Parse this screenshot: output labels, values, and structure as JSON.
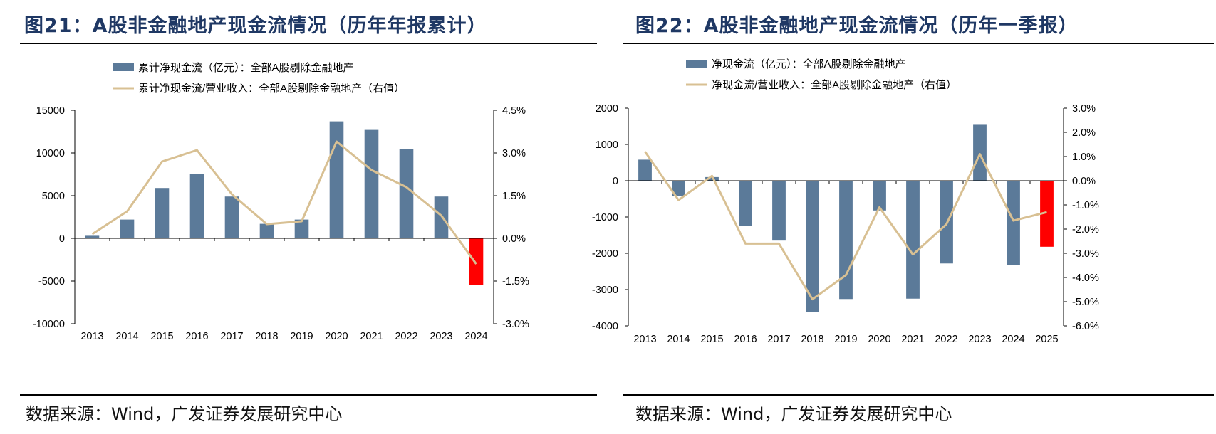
{
  "colors": {
    "bar": "#5b7a99",
    "bar_negative_last": "#ff0000",
    "line": "#d8c093",
    "title": "#1f3864"
  },
  "panels": [
    {
      "title": "图21：A股非金融地产现金流情况（历年年报累计）",
      "source": "数据来源：Wind，广发证券发展研究中心"
    },
    {
      "title": "图22：A股非金融地产现金流情况（历年一季报）",
      "source": "数据来源：Wind，广发证券发展研究中心"
    }
  ],
  "chart_data": [
    {
      "type": "bar",
      "categories": [
        "2013",
        "2014",
        "2015",
        "2016",
        "2017",
        "2018",
        "2019",
        "2020",
        "2021",
        "2022",
        "2023",
        "2024"
      ],
      "series": [
        {
          "name": "累计净现金流（亿元）：全部A股剔除金融地产",
          "kind": "bar",
          "axis": "left",
          "values": [
            300,
            2200,
            5900,
            7500,
            4900,
            1700,
            2200,
            13700,
            12700,
            10500,
            4900,
            -5500
          ]
        },
        {
          "name": "累计净现金流/营业收入：全部A股剔除金融地产（右值）",
          "kind": "line",
          "axis": "right",
          "values": [
            0.15,
            0.95,
            2.7,
            3.1,
            1.55,
            0.5,
            0.6,
            3.4,
            2.4,
            1.8,
            0.8,
            -0.9
          ]
        }
      ],
      "left_axis": {
        "range": [
          -10000,
          15000
        ],
        "ticks": [
          15000,
          10000,
          5000,
          0,
          -5000,
          -10000
        ],
        "tick_labels": [
          "15000",
          "10000",
          "5000",
          "0",
          "-5000",
          "-10000"
        ]
      },
      "right_axis": {
        "range": [
          -3.0,
          4.5
        ],
        "ticks": [
          4.5,
          3.0,
          1.5,
          0.0,
          -1.5,
          -3.0
        ],
        "tick_labels": [
          "4.5%",
          "3.0%",
          "1.5%",
          "0.0%",
          "-1.5%",
          "-3.0%"
        ]
      },
      "legend": "top",
      "grid": false
    },
    {
      "type": "bar",
      "categories": [
        "2013",
        "2014",
        "2015",
        "2016",
        "2017",
        "2018",
        "2019",
        "2020",
        "2021",
        "2022",
        "2023",
        "2024",
        "2025"
      ],
      "series": [
        {
          "name": "净现金流（亿元）：全部A股剔除金融地产",
          "kind": "bar",
          "axis": "left",
          "values": [
            580,
            -420,
            100,
            -1250,
            -1650,
            -3620,
            -3260,
            -820,
            -3250,
            -2280,
            1560,
            -2320,
            -1820
          ]
        },
        {
          "name": "净现金流/营业收入：全部A股剔除金融地产（右值）",
          "kind": "line",
          "axis": "right",
          "values": [
            1.2,
            -0.8,
            0.2,
            -2.6,
            -2.6,
            -4.9,
            -3.9,
            -1.1,
            -3.05,
            -1.8,
            1.1,
            -1.65,
            -1.3
          ]
        }
      ],
      "left_axis": {
        "range": [
          -4000,
          2000
        ],
        "ticks": [
          2000,
          1000,
          0,
          -1000,
          -2000,
          -3000,
          -4000
        ],
        "tick_labels": [
          "2000",
          "1000",
          "0",
          "-1000",
          "-2000",
          "-3000",
          "-4000"
        ]
      },
      "right_axis": {
        "range": [
          -6.0,
          3.0
        ],
        "ticks": [
          3.0,
          2.0,
          1.0,
          0.0,
          -1.0,
          -2.0,
          -3.0,
          -4.0,
          -5.0,
          -6.0
        ],
        "tick_labels": [
          "3.0%",
          "2.0%",
          "1.0%",
          "0.0%",
          "-1.0%",
          "-2.0%",
          "-3.0%",
          "-4.0%",
          "-5.0%",
          "-6.0%"
        ]
      },
      "legend": "top",
      "grid": false
    }
  ]
}
